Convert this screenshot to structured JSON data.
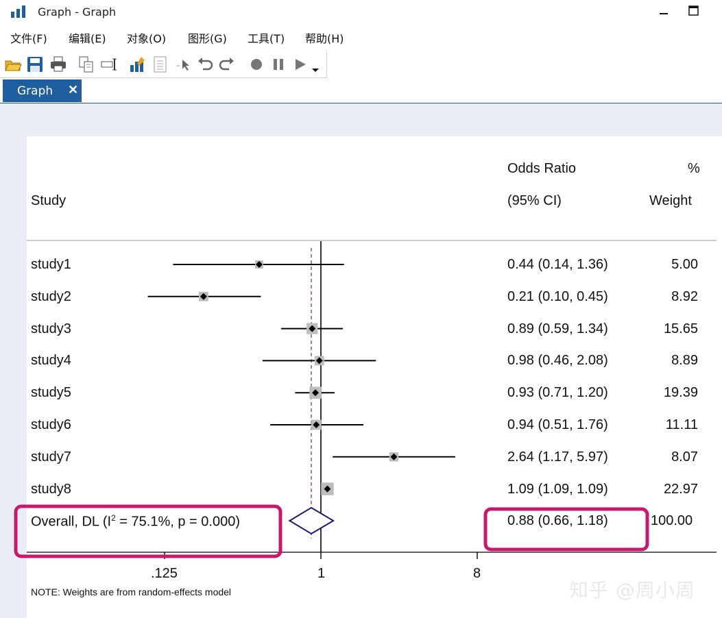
{
  "window": {
    "title": "Graph - Graph",
    "minimize_glyph": "–",
    "maximize_glyph": "☐"
  },
  "menu": [
    {
      "label": "文件(F)"
    },
    {
      "label": "编辑(E)"
    },
    {
      "label": "对象(O)"
    },
    {
      "label": "图形(G)"
    },
    {
      "label": "工具(T)"
    },
    {
      "label": "帮助(H)"
    }
  ],
  "toolbar": {
    "icons": [
      "open-folder-icon",
      "save-icon",
      "print-icon",
      "copy-icon",
      "rename-icon",
      "graph-editor-icon",
      "properties-icon",
      "pointer-icon",
      "undo-icon",
      "redo-icon",
      "record-icon",
      "pause-icon",
      "play-icon",
      "dropdown-arrow-icon"
    ]
  },
  "tab": {
    "label": "Graph",
    "close": "✕"
  },
  "forest": {
    "header": {
      "study": "Study",
      "or_line1": "Odds Ratio",
      "or_line2": "(95% CI)",
      "weight_line1": "%",
      "weight_line2": "Weight"
    },
    "studies": [
      {
        "name": "study1",
        "or": 0.44,
        "lo": 0.14,
        "hi": 1.36,
        "ci_text": "0.44 (0.14, 1.36)",
        "weight": "5.00"
      },
      {
        "name": "study2",
        "or": 0.21,
        "lo": 0.1,
        "hi": 0.45,
        "ci_text": "0.21 (0.10, 0.45)",
        "weight": "8.92"
      },
      {
        "name": "study3",
        "or": 0.89,
        "lo": 0.59,
        "hi": 1.34,
        "ci_text": "0.89 (0.59, 1.34)",
        "weight": "15.65"
      },
      {
        "name": "study4",
        "or": 0.98,
        "lo": 0.46,
        "hi": 2.08,
        "ci_text": "0.98 (0.46, 2.08)",
        "weight": "8.89"
      },
      {
        "name": "study5",
        "or": 0.93,
        "lo": 0.71,
        "hi": 1.2,
        "ci_text": "0.93 (0.71, 1.20)",
        "weight": "19.39"
      },
      {
        "name": "study6",
        "or": 0.94,
        "lo": 0.51,
        "hi": 1.76,
        "ci_text": "0.94 (0.51, 1.76)",
        "weight": "11.11"
      },
      {
        "name": "study7",
        "or": 2.64,
        "lo": 1.17,
        "hi": 5.97,
        "ci_text": "2.64 (1.17, 5.97)",
        "weight": "8.07"
      },
      {
        "name": "study8",
        "or": 1.09,
        "lo": 1.09,
        "hi": 1.09,
        "ci_text": "1.09 (1.09, 1.09)",
        "weight": "22.97"
      }
    ],
    "overall": {
      "label_pre": "Overall, DL (I",
      "label_sup": "2",
      "label_post": " = 75.1%, p = 0.000)",
      "or": 0.88,
      "lo": 0.66,
      "hi": 1.18,
      "ci_text": "0.88 (0.66, 1.18)",
      "weight": "100.00"
    },
    "x_ticks": [
      ".125",
      "1",
      "8"
    ],
    "note": "NOTE: Weights are from random-effects model",
    "colors": {
      "line": "#000000",
      "box": "#bdbdbd",
      "diamond": "#1a1a6e",
      "null_line": "#9b4b4b",
      "highlight": "#c8186e"
    }
  },
  "watermark": "知乎 @周小周"
}
